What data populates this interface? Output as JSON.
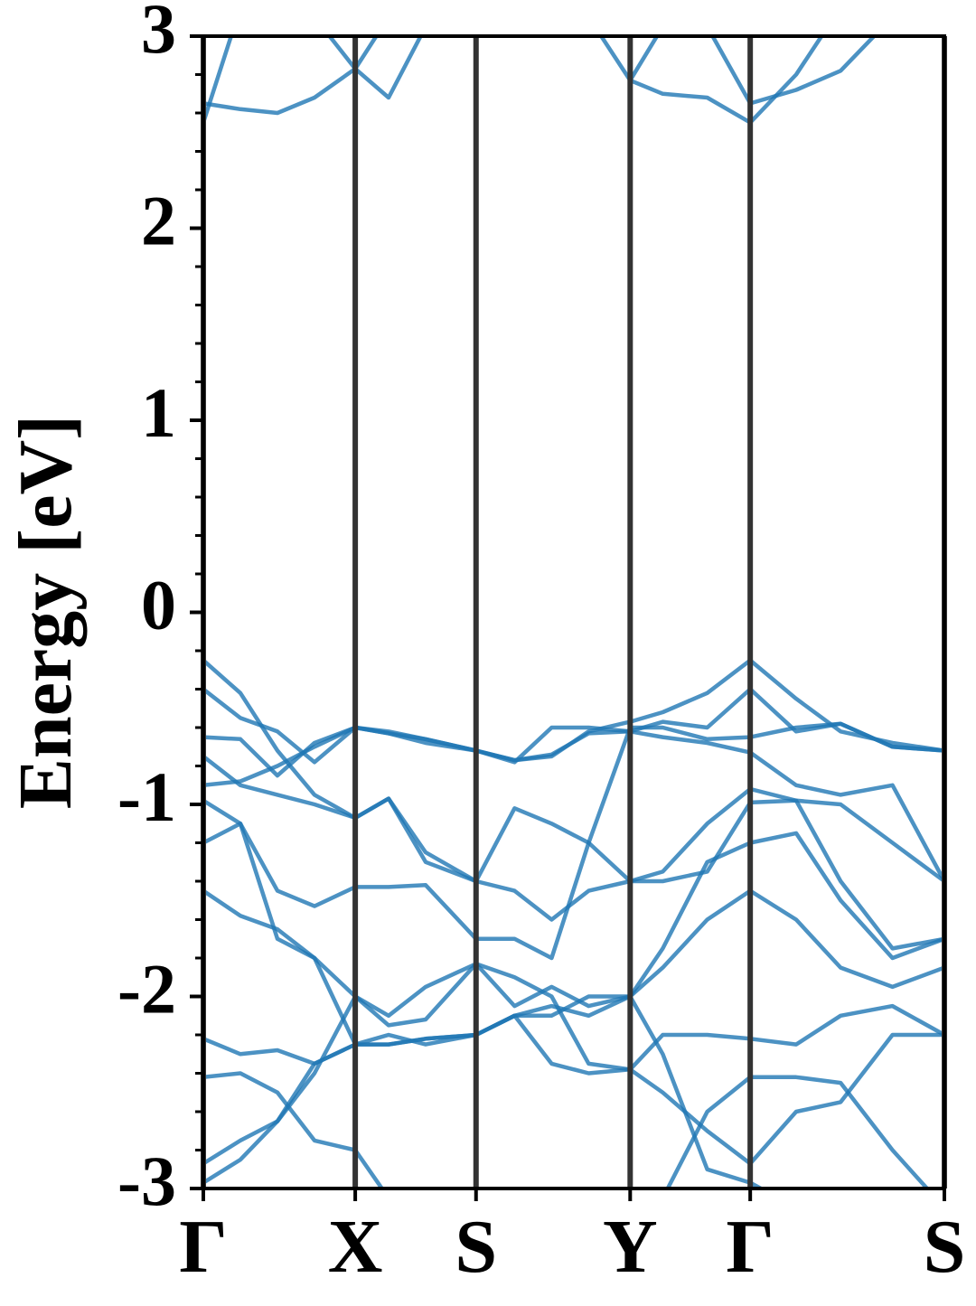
{
  "chart_data": {
    "type": "line",
    "ylabel": "Energy [eV]",
    "xlim": [
      0,
      1
    ],
    "ylim": [
      -3,
      3
    ],
    "xticks": [
      {
        "value": 0,
        "label": "Γ"
      },
      {
        "value": 0.205,
        "label": "X"
      },
      {
        "value": 0.368,
        "label": "S"
      },
      {
        "value": 0.576,
        "label": "Y"
      },
      {
        "value": 0.738,
        "label": "Γ"
      },
      {
        "value": 1.0,
        "label": "S"
      }
    ],
    "yticks": [
      -3,
      -2,
      -1,
      0,
      1,
      2,
      3
    ],
    "yminorticks": [
      -2.8,
      -2.6,
      -2.4,
      -2.2,
      -1.8,
      -1.6,
      -1.4,
      -1.2,
      -0.8,
      -0.6,
      -0.4,
      -0.2,
      0.2,
      0.4,
      0.6,
      0.8,
      1.2,
      1.4,
      1.6,
      1.8,
      2.2,
      2.4,
      2.6,
      2.8
    ],
    "color": "#1f77b4",
    "x": [
      0,
      0.05,
      0.1,
      0.15,
      0.205,
      0.25,
      0.3,
      0.368,
      0.42,
      0.47,
      0.52,
      0.576,
      0.62,
      0.68,
      0.738,
      0.8,
      0.86,
      0.93,
      1.0
    ],
    "series": [
      {
        "values": [
          2.55,
          3.15,
          null,
          null,
          null,
          null,
          null,
          null,
          null,
          null,
          null,
          null,
          null,
          3.05,
          2.65,
          2.72,
          2.82,
          3.1,
          null
        ]
      },
      {
        "values": [
          2.65,
          2.62,
          2.6,
          2.68,
          2.83,
          2.68,
          3.05,
          null,
          null,
          null,
          null,
          2.77,
          2.7,
          2.68,
          2.55,
          2.8,
          3.15,
          null,
          null
        ]
      },
      {
        "values": [
          null,
          null,
          null,
          3.1,
          2.83,
          3.1,
          null,
          null,
          null,
          null,
          3.1,
          2.77,
          3.05,
          null,
          null,
          null,
          null,
          null,
          null
        ]
      },
      {
        "values": [
          -0.25,
          -0.42,
          -0.72,
          -0.95,
          -1.07,
          -0.97,
          -1.25,
          -1.4,
          -1.02,
          -1.1,
          -1.2,
          -1.4,
          -1.35,
          -1.1,
          -0.92,
          -0.98,
          -1.0,
          -1.2,
          -1.4
        ]
      },
      {
        "values": [
          -0.4,
          -0.55,
          -0.62,
          -0.78,
          -0.6,
          -0.63,
          -0.68,
          -0.72,
          -0.77,
          -0.75,
          -0.62,
          -0.57,
          -0.52,
          -0.42,
          -0.25,
          -0.45,
          -0.62,
          -0.68,
          -0.72
        ]
      },
      {
        "values": [
          -0.65,
          -0.66,
          -0.85,
          -0.68,
          -0.6,
          -0.62,
          -0.66,
          -0.72,
          -0.77,
          -0.74,
          -0.63,
          -0.62,
          -0.57,
          -0.6,
          -0.4,
          -0.62,
          -0.58,
          -0.7,
          -0.72
        ]
      },
      {
        "values": [
          -0.75,
          -0.9,
          -0.95,
          -1.0,
          -1.07,
          -0.97,
          -1.3,
          -1.4,
          -1.45,
          -1.6,
          -1.45,
          -1.4,
          -1.4,
          -1.35,
          -0.99,
          -0.98,
          -1.4,
          -1.75,
          -1.7
        ]
      },
      {
        "values": [
          -0.9,
          -0.88,
          -0.8,
          -0.7,
          -0.6,
          -0.63,
          -0.66,
          -0.72,
          -0.78,
          -0.6,
          -0.6,
          -0.62,
          -0.65,
          -0.68,
          -0.73,
          -0.9,
          -0.95,
          -0.9,
          -1.4
        ]
      },
      {
        "values": [
          -0.98,
          -1.1,
          -1.45,
          -1.53,
          -1.43,
          -1.43,
          -1.42,
          -1.7,
          -1.7,
          -1.8,
          -1.2,
          -0.6,
          -0.6,
          -0.66,
          -0.65,
          -0.6,
          -0.58,
          -0.7,
          -0.72
        ]
      },
      {
        "values": [
          -1.2,
          -1.1,
          -1.7,
          -1.8,
          -2.0,
          -2.15,
          -2.12,
          -1.83,
          -2.05,
          -1.95,
          -2.05,
          -2.0,
          -1.85,
          -1.6,
          -1.45,
          -1.6,
          -1.85,
          -1.95,
          -1.85
        ]
      },
      {
        "values": [
          -1.45,
          -1.58,
          -1.65,
          -1.8,
          -2.25,
          -2.25,
          -2.22,
          -2.2,
          -2.1,
          -2.35,
          -2.4,
          -2.38,
          -2.2,
          -2.2,
          -2.22,
          -2.25,
          -2.1,
          -2.05,
          -2.2
        ]
      },
      {
        "values": [
          -2.22,
          -2.3,
          -2.28,
          -2.35,
          -2.25,
          -2.2,
          -2.25,
          -2.2,
          -2.1,
          -2.1,
          -2.0,
          -2.0,
          -1.75,
          -1.3,
          -1.2,
          -1.15,
          -1.5,
          -1.8,
          -1.7
        ]
      },
      {
        "values": [
          -2.42,
          -2.4,
          -2.5,
          -2.75,
          -2.8,
          -3.05,
          null,
          null,
          null,
          null,
          null,
          null,
          -3.05,
          -2.6,
          -2.42,
          -2.42,
          -2.45,
          -2.8,
          -3.1
        ]
      },
      {
        "values": [
          -2.87,
          -2.75,
          -2.65,
          -2.4,
          -2.0,
          -2.1,
          -1.95,
          -1.83,
          -1.9,
          -2.0,
          -2.35,
          -2.38,
          -2.5,
          -2.7,
          -2.87,
          -2.6,
          -2.55,
          -2.2,
          -2.2
        ]
      },
      {
        "values": [
          -2.97,
          -2.85,
          -2.65,
          -2.35,
          -2.25,
          -2.25,
          -2.22,
          -2.2,
          -2.1,
          -2.05,
          -2.1,
          -2.0,
          -2.3,
          -2.9,
          -2.97,
          -3.1,
          null,
          null,
          null
        ]
      }
    ]
  }
}
